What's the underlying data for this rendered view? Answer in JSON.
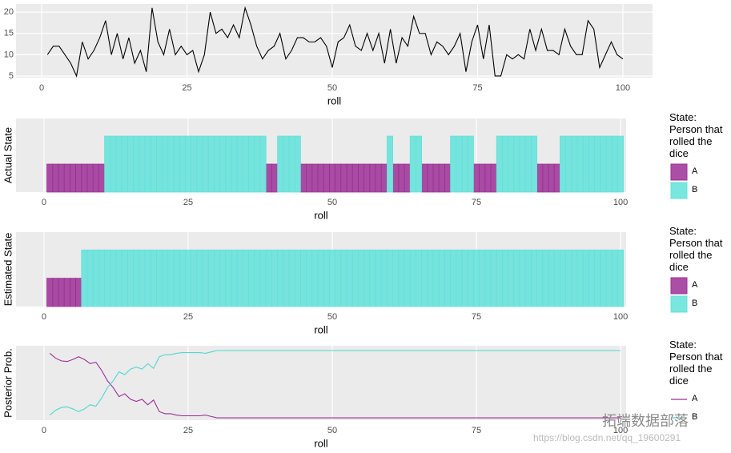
{
  "chart_data": [
    {
      "type": "line",
      "xlabel": "roll",
      "x": [
        1,
        2,
        3,
        4,
        5,
        6,
        7,
        8,
        9,
        10,
        11,
        12,
        13,
        14,
        15,
        16,
        17,
        18,
        19,
        20,
        21,
        22,
        23,
        24,
        25,
        26,
        27,
        28,
        29,
        30,
        31,
        32,
        33,
        34,
        35,
        36,
        37,
        38,
        39,
        40,
        41,
        42,
        43,
        44,
        45,
        46,
        47,
        48,
        49,
        50,
        51,
        52,
        53,
        54,
        55,
        56,
        57,
        58,
        59,
        60,
        61,
        62,
        63,
        64,
        65,
        66,
        67,
        68,
        69,
        70,
        71,
        72,
        73,
        74,
        75,
        76,
        77,
        78,
        79,
        80,
        81,
        82,
        83,
        84,
        85,
        86,
        87,
        88,
        89,
        90,
        91,
        92,
        93,
        94,
        95,
        96,
        97,
        98,
        99,
        100
      ],
      "values": [
        10,
        12,
        12,
        10,
        8,
        5,
        13,
        9,
        11,
        14,
        18,
        10,
        15,
        9,
        14,
        8,
        11,
        6,
        21,
        13,
        10,
        16,
        10,
        12,
        10,
        11,
        6,
        10,
        20,
        15,
        16,
        14,
        17,
        14,
        21,
        17,
        12,
        9,
        11,
        12,
        15,
        9,
        11,
        14,
        14,
        13,
        13,
        14,
        12,
        7,
        13,
        14,
        17,
        12,
        11,
        15,
        11,
        15,
        8,
        16,
        8,
        14,
        12,
        19,
        15,
        15,
        10,
        13,
        12,
        10,
        12,
        15,
        6,
        13,
        17,
        9,
        17,
        5,
        5,
        10,
        9,
        10,
        9,
        16,
        11,
        16,
        11,
        11,
        10,
        16,
        12,
        10,
        10,
        18,
        16,
        7,
        10,
        13,
        10,
        9
      ],
      "color": "#000000",
      "xlim": [
        -4.41,
        105.1
      ],
      "xticks": [
        0,
        25,
        50,
        75,
        100
      ],
      "ylim": [
        4.62,
        21.9
      ],
      "yticks": [
        5,
        10,
        15,
        20
      ],
      "grid": true
    },
    {
      "type": "bar",
      "xlabel": "roll",
      "ylabel": "Actual State",
      "legend_title": "State:\nPerson that\nrolled the\ndice",
      "x": [
        1,
        2,
        3,
        4,
        5,
        6,
        7,
        8,
        9,
        10,
        11,
        12,
        13,
        14,
        15,
        16,
        17,
        18,
        19,
        20,
        21,
        22,
        23,
        24,
        25,
        26,
        27,
        28,
        29,
        30,
        31,
        32,
        33,
        34,
        35,
        36,
        37,
        38,
        39,
        40,
        41,
        42,
        43,
        44,
        45,
        46,
        47,
        48,
        49,
        50,
        51,
        52,
        53,
        54,
        55,
        56,
        57,
        58,
        59,
        60,
        61,
        62,
        63,
        64,
        65,
        66,
        67,
        68,
        69,
        70,
        71,
        72,
        73,
        74,
        75,
        76,
        77,
        78,
        79,
        80,
        81,
        82,
        83,
        84,
        85,
        86,
        87,
        88,
        89,
        90,
        91,
        92,
        93,
        94,
        95,
        96,
        97,
        98,
        99,
        100
      ],
      "series": [
        {
          "name": "A",
          "color": "#9c2f97",
          "values": [
            1,
            1,
            1,
            1,
            1,
            1,
            1,
            1,
            1,
            1,
            null,
            null,
            null,
            null,
            null,
            null,
            null,
            null,
            null,
            null,
            null,
            null,
            null,
            null,
            null,
            null,
            null,
            null,
            null,
            null,
            null,
            null,
            null,
            null,
            null,
            null,
            null,
            null,
            1,
            1,
            null,
            null,
            null,
            null,
            1,
            1,
            1,
            1,
            1,
            1,
            1,
            1,
            1,
            1,
            1,
            1,
            1,
            1,
            1,
            null,
            1,
            1,
            1,
            null,
            null,
            1,
            1,
            1,
            1,
            1,
            null,
            null,
            null,
            null,
            1,
            1,
            1,
            1,
            null,
            null,
            null,
            null,
            null,
            null,
            null,
            1,
            1,
            1,
            1,
            null,
            null,
            null,
            null,
            null,
            null,
            null,
            null,
            null,
            null,
            null
          ]
        },
        {
          "name": "B",
          "color": "#62e2da",
          "values": [
            null,
            null,
            null,
            null,
            null,
            null,
            null,
            null,
            null,
            null,
            2,
            2,
            2,
            2,
            2,
            2,
            2,
            2,
            2,
            2,
            2,
            2,
            2,
            2,
            2,
            2,
            2,
            2,
            2,
            2,
            2,
            2,
            2,
            2,
            2,
            2,
            2,
            2,
            null,
            null,
            2,
            2,
            2,
            2,
            null,
            null,
            null,
            null,
            null,
            null,
            null,
            null,
            null,
            null,
            null,
            null,
            null,
            null,
            null,
            2,
            null,
            null,
            null,
            2,
            2,
            null,
            null,
            null,
            null,
            null,
            2,
            2,
            2,
            2,
            null,
            null,
            null,
            null,
            2,
            2,
            2,
            2,
            2,
            2,
            2,
            null,
            null,
            null,
            null,
            2,
            2,
            2,
            2,
            2,
            2,
            2,
            2,
            2,
            2,
            2
          ]
        }
      ],
      "xlim": [
        -4.86,
        100.97
      ],
      "xticks": [
        0,
        25,
        50,
        75,
        100
      ],
      "ylim": [
        0,
        2.63
      ],
      "grid": true
    },
    {
      "type": "bar",
      "xlabel": "roll",
      "ylabel": "Estimated State",
      "legend_title": "State:\nPerson that\nrolled the\ndice",
      "x": [
        1,
        2,
        3,
        4,
        5,
        6,
        7,
        8,
        9,
        10,
        11,
        12,
        13,
        14,
        15,
        16,
        17,
        18,
        19,
        20,
        21,
        22,
        23,
        24,
        25,
        26,
        27,
        28,
        29,
        30,
        31,
        32,
        33,
        34,
        35,
        36,
        37,
        38,
        39,
        40,
        41,
        42,
        43,
        44,
        45,
        46,
        47,
        48,
        49,
        50,
        51,
        52,
        53,
        54,
        55,
        56,
        57,
        58,
        59,
        60,
        61,
        62,
        63,
        64,
        65,
        66,
        67,
        68,
        69,
        70,
        71,
        72,
        73,
        74,
        75,
        76,
        77,
        78,
        79,
        80,
        81,
        82,
        83,
        84,
        85,
        86,
        87,
        88,
        89,
        90,
        91,
        92,
        93,
        94,
        95,
        96,
        97,
        98,
        99,
        100
      ],
      "series": [
        {
          "name": "A",
          "color": "#9c2f97",
          "values": [
            1,
            1,
            1,
            1,
            1,
            1,
            null,
            null,
            null,
            null,
            null,
            null,
            null,
            null,
            null,
            null,
            null,
            null,
            null,
            null,
            null,
            null,
            null,
            null,
            null,
            null,
            null,
            null,
            null,
            null,
            null,
            null,
            null,
            null,
            null,
            null,
            null,
            null,
            null,
            null,
            null,
            null,
            null,
            null,
            null,
            null,
            null,
            null,
            null,
            null,
            null,
            null,
            null,
            null,
            null,
            null,
            null,
            null,
            null,
            null,
            null,
            null,
            null,
            null,
            null,
            null,
            null,
            null,
            null,
            null,
            null,
            null,
            null,
            null,
            null,
            null,
            null,
            null,
            null,
            null,
            null,
            null,
            null,
            null,
            null,
            null,
            null,
            null,
            null,
            null,
            null,
            null,
            null,
            null,
            null,
            null,
            null,
            null,
            null,
            null
          ]
        },
        {
          "name": "B",
          "color": "#62e2da",
          "values": [
            null,
            null,
            null,
            null,
            null,
            null,
            2,
            2,
            2,
            2,
            2,
            2,
            2,
            2,
            2,
            2,
            2,
            2,
            2,
            2,
            2,
            2,
            2,
            2,
            2,
            2,
            2,
            2,
            2,
            2,
            2,
            2,
            2,
            2,
            2,
            2,
            2,
            2,
            2,
            2,
            2,
            2,
            2,
            2,
            2,
            2,
            2,
            2,
            2,
            2,
            2,
            2,
            2,
            2,
            2,
            2,
            2,
            2,
            2,
            2,
            2,
            2,
            2,
            2,
            2,
            2,
            2,
            2,
            2,
            2,
            2,
            2,
            2,
            2,
            2,
            2,
            2,
            2,
            2,
            2,
            2,
            2,
            2,
            2,
            2,
            2,
            2,
            2,
            2,
            2,
            2,
            2,
            2,
            2,
            2,
            2,
            2,
            2,
            2,
            2
          ]
        }
      ],
      "xlim": [
        -4.86,
        100.97
      ],
      "xticks": [
        0,
        25,
        50,
        75,
        100
      ],
      "ylim": [
        0,
        2.63
      ],
      "grid": true
    },
    {
      "type": "line",
      "xlabel": "roll",
      "ylabel": "Posterior Prob.",
      "legend_title": "State:\nPerson that\nrolled the\ndice",
      "x": [
        1,
        2,
        3,
        4,
        5,
        6,
        7,
        8,
        9,
        10,
        11,
        12,
        13,
        14,
        15,
        16,
        17,
        18,
        19,
        20,
        21,
        22,
        23,
        24,
        25,
        26,
        27,
        28,
        29,
        30,
        31,
        32,
        33,
        34,
        35,
        36,
        37,
        38,
        39,
        40,
        41,
        42,
        43,
        44,
        45,
        46,
        47,
        48,
        49,
        50,
        51,
        52,
        53,
        54,
        55,
        56,
        57,
        58,
        59,
        60,
        61,
        62,
        63,
        64,
        65,
        66,
        67,
        68,
        69,
        70,
        71,
        72,
        73,
        74,
        75,
        76,
        77,
        78,
        79,
        80,
        81,
        82,
        83,
        84,
        85,
        86,
        87,
        88,
        89,
        90,
        91,
        92,
        93,
        94,
        95,
        96,
        97,
        98,
        99,
        100
      ],
      "series": [
        {
          "name": "A",
          "color": "#9c2f97",
          "values": [
            0.95,
            0.88,
            0.84,
            0.83,
            0.86,
            0.9,
            0.86,
            0.8,
            0.82,
            0.7,
            0.55,
            0.45,
            0.32,
            0.36,
            0.28,
            0.25,
            0.28,
            0.2,
            0.27,
            0.1,
            0.07,
            0.07,
            0.05,
            0.04,
            0.04,
            0.04,
            0.04,
            0.05,
            0.03,
            0.01,
            0.01,
            0.01,
            0.01,
            0.01,
            0.01,
            0.01,
            0.01,
            0.01,
            0.01,
            0.01,
            0.01,
            0.01,
            0.01,
            0.01,
            0.01,
            0.01,
            0.01,
            0.01,
            0.01,
            0.01,
            0.01,
            0.01,
            0.01,
            0.01,
            0.01,
            0.01,
            0.01,
            0.01,
            0.01,
            0.01,
            0.01,
            0.01,
            0.01,
            0.01,
            0.01,
            0.01,
            0.01,
            0.01,
            0.01,
            0.01,
            0.01,
            0.01,
            0.01,
            0.01,
            0.01,
            0.01,
            0.01,
            0.01,
            0.01,
            0.01,
            0.01,
            0.01,
            0.01,
            0.01,
            0.01,
            0.01,
            0.01,
            0.01,
            0.01,
            0.01,
            0.01,
            0.01,
            0.01,
            0.01,
            0.01,
            0.01,
            0.01,
            0.01,
            0.01,
            0.01
          ]
        },
        {
          "name": "B",
          "color": "#4fd8cf",
          "values": [
            0.05,
            0.12,
            0.16,
            0.17,
            0.14,
            0.1,
            0.14,
            0.2,
            0.18,
            0.3,
            0.45,
            0.55,
            0.68,
            0.64,
            0.72,
            0.75,
            0.72,
            0.8,
            0.73,
            0.9,
            0.93,
            0.93,
            0.95,
            0.96,
            0.96,
            0.96,
            0.96,
            0.95,
            0.97,
            0.99,
            0.99,
            0.99,
            0.99,
            0.99,
            0.99,
            0.99,
            0.99,
            0.99,
            0.99,
            0.99,
            0.99,
            0.99,
            0.99,
            0.99,
            0.99,
            0.99,
            0.99,
            0.99,
            0.99,
            0.99,
            0.99,
            0.99,
            0.99,
            0.99,
            0.99,
            0.99,
            0.99,
            0.99,
            0.99,
            0.99,
            0.99,
            0.99,
            0.99,
            0.99,
            0.99,
            0.99,
            0.99,
            0.99,
            0.99,
            0.99,
            0.99,
            0.99,
            0.99,
            0.99,
            0.99,
            0.99,
            0.99,
            0.99,
            0.99,
            0.99,
            0.99,
            0.99,
            0.99,
            0.99,
            0.99,
            0.99,
            0.99,
            0.99,
            0.99,
            0.99,
            0.99,
            0.99,
            0.99,
            0.99,
            0.99,
            0.99,
            0.99,
            0.99,
            0.99,
            0.99
          ]
        }
      ],
      "xlim": [
        -4.86,
        100.97
      ],
      "xticks": [
        0,
        25,
        50,
        75,
        100
      ],
      "ylim": [
        -0.024,
        1.06
      ],
      "grid": true
    }
  ],
  "watermark": {
    "brand": "拓端数据部落",
    "url": "https://blog.csdn.net/qq_19600291"
  }
}
